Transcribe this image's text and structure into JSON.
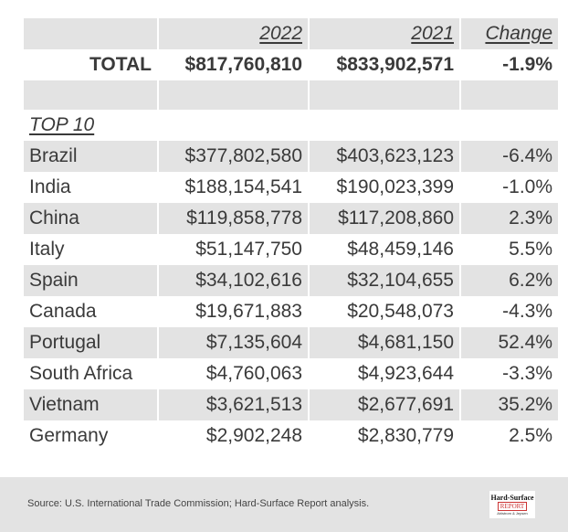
{
  "header": {
    "col_2022": "2022",
    "col_2021": "2021",
    "col_change": "Change"
  },
  "total": {
    "label": "TOTAL",
    "v2022": "$817,760,810",
    "v2021": "$833,902,571",
    "change": "-1.9%"
  },
  "section_label": "TOP 10",
  "rows": [
    {
      "country": "Brazil",
      "v2022": "$377,802,580",
      "v2021": "$403,623,123",
      "change": "-6.4%"
    },
    {
      "country": "India",
      "v2022": "$188,154,541",
      "v2021": "$190,023,399",
      "change": "-1.0%"
    },
    {
      "country": "China",
      "v2022": "$119,858,778",
      "v2021": "$117,208,860",
      "change": "2.3%"
    },
    {
      "country": "Italy",
      "v2022": "$51,147,750",
      "v2021": "$48,459,146",
      "change": "5.5%"
    },
    {
      "country": "Spain",
      "v2022": "$34,102,616",
      "v2021": "$32,104,655",
      "change": "6.2%"
    },
    {
      "country": "Canada",
      "v2022": "$19,671,883",
      "v2021": "$20,548,073",
      "change": "-4.3%"
    },
    {
      "country": "Portugal",
      "v2022": "$7,135,604",
      "v2021": "$4,681,150",
      "change": "52.4%"
    },
    {
      "country": "South Africa",
      "v2022": "$4,760,063",
      "v2021": "$4,923,644",
      "change": "-3.3%"
    },
    {
      "country": "Vietnam",
      "v2022": "$3,621,513",
      "v2021": "$2,677,691",
      "change": "35.2%"
    },
    {
      "country": "Germany",
      "v2022": "$2,902,248",
      "v2021": "$2,830,779",
      "change": "2.5%"
    }
  ],
  "footer": {
    "source": "Source: U.S. International Trade Commission; Hard-Surface Report analysis.",
    "logo": {
      "line1": "Hard-Surface",
      "line2": "REPORT",
      "line3": "Ahlstrom & Jepsen"
    }
  },
  "colors": {
    "shade": "#e3e3e3",
    "text": "#3a3a3a"
  }
}
